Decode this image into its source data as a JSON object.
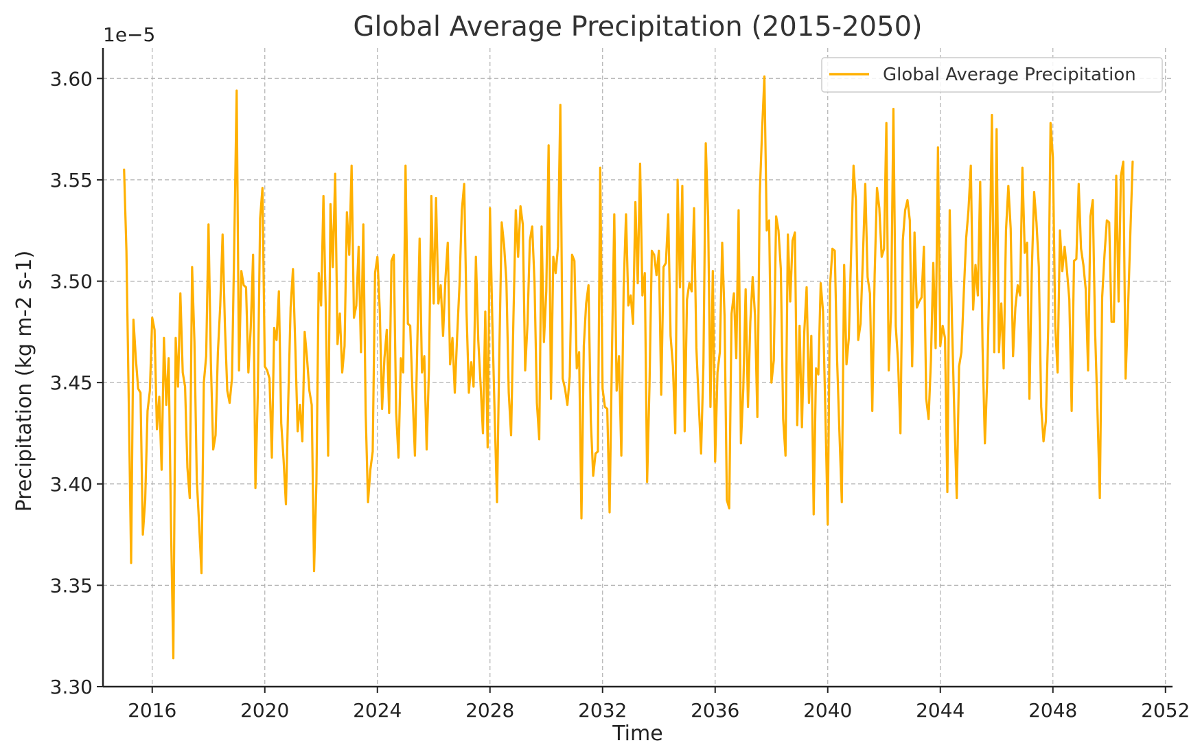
{
  "chart_data": {
    "type": "line",
    "title": "Global Average Precipitation (2015-2050)",
    "xlabel": "Time",
    "ylabel": "Precipitation (kg m-2 s-1)",
    "y_offset_label": "1e−5",
    "y_scale_factor": 1e-05,
    "xlim": [
      2014.25,
      2052.25
    ],
    "ylim": [
      3.3,
      3.615
    ],
    "x_ticks": [
      2016,
      2020,
      2024,
      2028,
      2032,
      2036,
      2040,
      2044,
      2048,
      2052
    ],
    "x_tick_labels": [
      "2016",
      "2020",
      "2024",
      "2028",
      "2032",
      "2036",
      "2040",
      "2044",
      "2048",
      "2052"
    ],
    "y_ticks": [
      3.3,
      3.35,
      3.4,
      3.45,
      3.5,
      3.55,
      3.6
    ],
    "y_tick_labels": [
      "3.30",
      "3.35",
      "3.40",
      "3.45",
      "3.50",
      "3.55",
      "3.60"
    ],
    "grid": true,
    "legend_position": "top-right",
    "colors": {
      "series": "#FFB000",
      "grid": "#b0b0b0",
      "axes": "#222222"
    },
    "series": [
      {
        "name": "Global Average Precipitation",
        "x_start": 2015.0,
        "x_step_months": 1,
        "values": [
          3.555,
          3.515,
          3.44,
          3.361,
          3.481,
          3.462,
          3.447,
          3.445,
          3.375,
          3.392,
          3.436,
          3.446,
          3.482,
          3.476,
          3.427,
          3.443,
          3.407,
          3.472,
          3.439,
          3.462,
          3.38,
          3.314,
          3.472,
          3.448,
          3.494,
          3.455,
          3.448,
          3.408,
          3.393,
          3.507,
          3.47,
          3.402,
          3.38,
          3.356,
          3.45,
          3.463,
          3.528,
          3.46,
          3.417,
          3.424,
          3.465,
          3.488,
          3.523,
          3.478,
          3.446,
          3.44,
          3.452,
          3.52,
          3.594,
          3.456,
          3.505,
          3.498,
          3.497,
          3.455,
          3.477,
          3.513,
          3.398,
          3.444,
          3.531,
          3.546,
          3.458,
          3.456,
          3.452,
          3.413,
          3.477,
          3.471,
          3.495,
          3.43,
          3.412,
          3.39,
          3.441,
          3.487,
          3.506,
          3.468,
          3.426,
          3.439,
          3.421,
          3.475,
          3.462,
          3.446,
          3.439,
          3.357,
          3.401,
          3.504,
          3.488,
          3.542,
          3.486,
          3.414,
          3.538,
          3.507,
          3.553,
          3.469,
          3.484,
          3.455,
          3.468,
          3.534,
          3.513,
          3.557,
          3.482,
          3.488,
          3.517,
          3.465,
          3.528,
          3.435,
          3.391,
          3.407,
          3.416,
          3.504,
          3.512,
          3.486,
          3.437,
          3.462,
          3.476,
          3.435,
          3.51,
          3.513,
          3.435,
          3.413,
          3.462,
          3.455,
          3.557,
          3.479,
          3.478,
          3.444,
          3.414,
          3.468,
          3.521,
          3.455,
          3.463,
          3.417,
          3.457,
          3.542,
          3.489,
          3.541,
          3.489,
          3.498,
          3.473,
          3.501,
          3.519,
          3.459,
          3.472,
          3.445,
          3.473,
          3.498,
          3.535,
          3.548,
          3.485,
          3.445,
          3.46,
          3.448,
          3.512,
          3.471,
          3.449,
          3.425,
          3.485,
          3.418,
          3.536,
          3.48,
          3.434,
          3.391,
          3.466,
          3.529,
          3.518,
          3.5,
          3.445,
          3.424,
          3.482,
          3.535,
          3.512,
          3.537,
          3.528,
          3.456,
          3.479,
          3.52,
          3.527,
          3.499,
          3.44,
          3.422,
          3.527,
          3.47,
          3.495,
          3.567,
          3.442,
          3.512,
          3.504,
          3.517,
          3.587,
          3.452,
          3.447,
          3.439,
          3.453,
          3.513,
          3.51,
          3.457,
          3.465,
          3.383,
          3.468,
          3.489,
          3.498,
          3.431,
          3.404,
          3.415,
          3.416,
          3.556,
          3.447,
          3.438,
          3.437,
          3.386,
          3.464,
          3.533,
          3.446,
          3.463,
          3.414,
          3.497,
          3.533,
          3.488,
          3.493,
          3.479,
          3.539,
          3.499,
          3.558,
          3.493,
          3.504,
          3.401,
          3.448,
          3.515,
          3.513,
          3.503,
          3.515,
          3.444,
          3.507,
          3.509,
          3.533,
          3.473,
          3.458,
          3.425,
          3.55,
          3.497,
          3.547,
          3.426,
          3.491,
          3.499,
          3.495,
          3.536,
          3.467,
          3.44,
          3.415,
          3.459,
          3.568,
          3.532,
          3.438,
          3.505,
          3.411,
          3.455,
          3.465,
          3.519,
          3.483,
          3.392,
          3.388,
          3.484,
          3.494,
          3.462,
          3.535,
          3.42,
          3.447,
          3.496,
          3.438,
          3.48,
          3.502,
          3.483,
          3.433,
          3.542,
          3.574,
          3.601,
          3.525,
          3.53,
          3.45,
          3.461,
          3.532,
          3.525,
          3.506,
          3.432,
          3.414,
          3.523,
          3.49,
          3.52,
          3.524,
          3.429,
          3.478,
          3.428,
          3.475,
          3.497,
          3.44,
          3.473,
          3.385,
          3.457,
          3.454,
          3.499,
          3.485,
          3.435,
          3.38,
          3.498,
          3.516,
          3.515,
          3.461,
          3.425,
          3.391,
          3.508,
          3.459,
          3.472,
          3.515,
          3.557,
          3.54,
          3.471,
          3.479,
          3.512,
          3.548,
          3.502,
          3.494,
          3.436,
          3.503,
          3.546,
          3.536,
          3.512,
          3.516,
          3.578,
          3.456,
          3.485,
          3.585,
          3.478,
          3.46,
          3.425,
          3.52,
          3.535,
          3.54,
          3.53,
          3.458,
          3.524,
          3.487,
          3.49,
          3.492,
          3.517,
          3.442,
          3.432,
          3.461,
          3.509,
          3.467,
          3.566,
          3.468,
          3.478,
          3.472,
          3.396,
          3.535,
          3.479,
          3.433,
          3.393,
          3.458,
          3.465,
          3.494,
          3.521,
          3.535,
          3.557,
          3.486,
          3.508,
          3.493,
          3.549,
          3.468,
          3.42,
          3.452,
          3.507,
          3.582,
          3.465,
          3.575,
          3.465,
          3.489,
          3.457,
          3.525,
          3.547,
          3.526,
          3.463,
          3.487,
          3.498,
          3.493,
          3.556,
          3.514,
          3.519,
          3.442,
          3.505,
          3.544,
          3.529,
          3.507,
          3.438,
          3.421,
          3.431,
          3.477,
          3.578,
          3.561,
          3.478,
          3.455,
          3.525,
          3.505,
          3.517,
          3.505,
          3.491,
          3.436,
          3.51,
          3.511,
          3.548,
          3.516,
          3.508,
          3.496,
          3.456,
          3.532,
          3.54,
          3.475,
          3.436,
          3.393,
          3.492,
          3.513,
          3.53,
          3.529,
          3.48,
          3.48,
          3.552,
          3.49,
          3.552,
          3.559,
          3.452,
          3.485,
          3.523,
          3.559
        ]
      }
    ]
  }
}
